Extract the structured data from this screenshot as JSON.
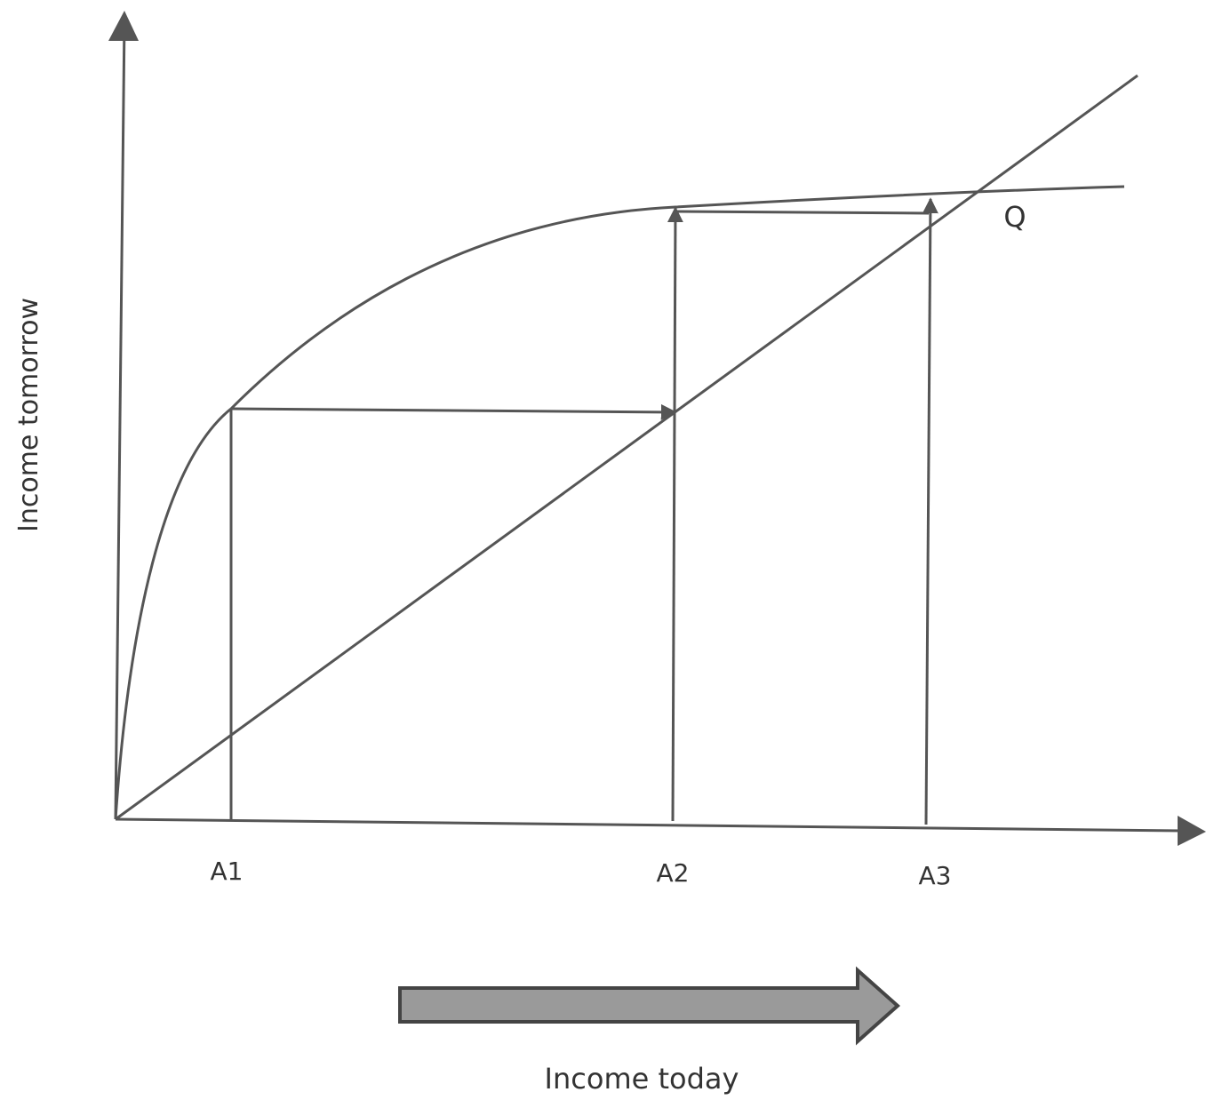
{
  "axes": {
    "y_label": "Income tomorrow",
    "x_label": "Income today"
  },
  "points": [
    {
      "label": "A1"
    },
    {
      "label": "A2"
    },
    {
      "label": "A3"
    }
  ],
  "equilibrium": {
    "label": "Q"
  }
}
